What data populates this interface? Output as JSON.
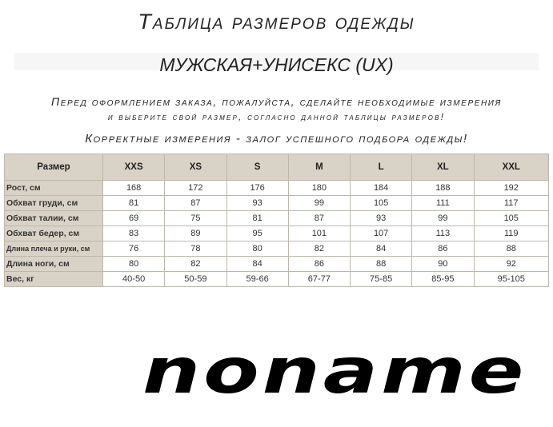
{
  "header": {
    "title": "Таблица размеров одежды",
    "subtitle": "МУЖСКАЯ+УНИСЕКС (UX)",
    "instruction_line1": "Перед оформлением заказа, пожалуйста, сделайте необходимые измерения",
    "instruction_line2": "и выберите свой размер, согласно данной таблицы размеров!",
    "instruction_line3": "Корректные измерения - залог успешного подбора одежды!"
  },
  "table": {
    "corner": "Размер",
    "sizes": [
      "XXS",
      "XS",
      "S",
      "M",
      "L",
      "XL",
      "XXL"
    ],
    "rows": [
      {
        "label": "Рост, см",
        "values": [
          "168",
          "172",
          "176",
          "180",
          "184",
          "188",
          "192"
        ]
      },
      {
        "label": "Обхват груди, см",
        "values": [
          "81",
          "87",
          "93",
          "99",
          "105",
          "111",
          "117"
        ]
      },
      {
        "label": "Обхват талии, см",
        "values": [
          "69",
          "75",
          "81",
          "87",
          "93",
          "99",
          "105"
        ]
      },
      {
        "label": "Обхват бедер, см",
        "values": [
          "83",
          "89",
          "95",
          "101",
          "107",
          "113",
          "119"
        ]
      },
      {
        "label": "Длина плеча и руки, см",
        "values": [
          "76",
          "78",
          "80",
          "82",
          "84",
          "86",
          "88"
        ]
      },
      {
        "label": "Длина ноги, см",
        "values": [
          "80",
          "82",
          "84",
          "86",
          "88",
          "90",
          "92"
        ]
      },
      {
        "label": "Вес, кг",
        "values": [
          "40-50",
          "50-59",
          "59-66",
          "67-77",
          "75-85",
          "85-95",
          "95-105"
        ]
      }
    ]
  },
  "logo": {
    "text": "noname"
  },
  "colors": {
    "header_bg": "#d8d3c6",
    "text": "#222222",
    "logo": "#000000"
  }
}
